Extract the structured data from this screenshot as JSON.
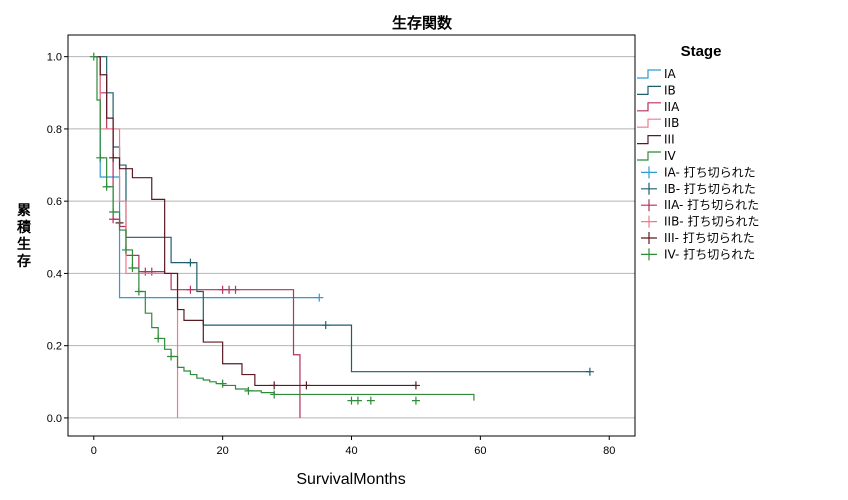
{
  "chart_data": {
    "type": "line",
    "title": "生存関数",
    "xlabel": "SurvivalMonths",
    "ylabel": "累積生存",
    "xlim": [
      -4,
      84
    ],
    "ylim": [
      -0.05,
      1.06
    ],
    "xticks": [
      "0",
      "20",
      "40",
      "60",
      "80"
    ],
    "yticks": [
      "0.0",
      "0.2",
      "0.4",
      "0.6",
      "0.8",
      "1.0"
    ],
    "grid": "horizontal",
    "legend_placement": "right",
    "legend_title": "Stage",
    "series": [
      {
        "name": "IA",
        "censor_name": "IA- 打ち切られた",
        "color": "#2E9BD6",
        "x": [
          0,
          1,
          4,
          35
        ],
        "y": [
          1.0,
          0.667,
          0.333,
          0.333
        ],
        "censored": [
          {
            "x": 35,
            "y": 0.333
          }
        ]
      },
      {
        "name": "IB",
        "censor_name": "IB- 打ち切られた",
        "color": "#1D5F6B",
        "x": [
          0,
          2,
          3,
          4,
          5,
          10,
          12,
          16,
          17,
          40,
          77
        ],
        "y": [
          1.0,
          0.9,
          0.75,
          0.7,
          0.5,
          0.5,
          0.43,
          0.35,
          0.257,
          0.128,
          0.128
        ],
        "censored": [
          {
            "x": 15,
            "y": 0.43
          },
          {
            "x": 36,
            "y": 0.257
          },
          {
            "x": 77,
            "y": 0.128
          }
        ]
      },
      {
        "name": "IIA",
        "censor_name": "IIA- 打ち切られた",
        "color": "#B5305F",
        "x": [
          0,
          1,
          2,
          3,
          4,
          5,
          7,
          11,
          12,
          31,
          32
        ],
        "y": [
          1.0,
          0.9,
          0.8,
          0.55,
          0.53,
          0.45,
          0.405,
          0.4,
          0.355,
          0.175,
          0.0
        ],
        "censored": [
          {
            "x": 3,
            "y": 0.55
          },
          {
            "x": 8,
            "y": 0.405
          },
          {
            "x": 9,
            "y": 0.405
          },
          {
            "x": 15,
            "y": 0.355
          },
          {
            "x": 20,
            "y": 0.355
          },
          {
            "x": 21,
            "y": 0.355
          },
          {
            "x": 22,
            "y": 0.355
          }
        ]
      },
      {
        "name": "IIB",
        "censor_name": "IIB- 打ち切られた",
        "color": "#F07A8A",
        "x": [
          0,
          1,
          3,
          4,
          5,
          7,
          13
        ],
        "y": [
          1.0,
          0.8,
          0.8,
          0.6,
          0.4,
          0.4,
          0.0
        ],
        "censored": []
      },
      {
        "name": "III",
        "censor_name": "III- 打ち切られた",
        "color": "#5A1A24",
        "x": [
          0,
          1,
          2,
          3,
          4,
          6,
          9,
          11,
          13,
          14,
          17,
          20,
          23,
          25,
          50
        ],
        "y": [
          1.0,
          0.95,
          0.83,
          0.72,
          0.69,
          0.665,
          0.605,
          0.4,
          0.3,
          0.27,
          0.21,
          0.15,
          0.12,
          0.09,
          0.09
        ],
        "censored": [
          {
            "x": 3,
            "y": 0.72
          },
          {
            "x": 4,
            "y": 0.54
          },
          {
            "x": 28,
            "y": 0.09
          },
          {
            "x": 33,
            "y": 0.09
          },
          {
            "x": 50,
            "y": 0.09
          }
        ]
      },
      {
        "name": "IV",
        "censor_name": "IV- 打ち切られた",
        "color": "#2E8B3A",
        "x": [
          0,
          0.5,
          1,
          2,
          3,
          4,
          5,
          6,
          7,
          8,
          9,
          10,
          11,
          12,
          13,
          14,
          15,
          16,
          17,
          18,
          19,
          20,
          22,
          24,
          26,
          28,
          59
        ],
        "y": [
          1.0,
          0.88,
          0.72,
          0.64,
          0.57,
          0.52,
          0.465,
          0.415,
          0.35,
          0.29,
          0.25,
          0.22,
          0.19,
          0.17,
          0.14,
          0.13,
          0.12,
          0.11,
          0.105,
          0.1,
          0.095,
          0.09,
          0.08,
          0.075,
          0.07,
          0.065,
          0.048
        ],
        "censored": [
          {
            "x": 0,
            "y": 1.0
          },
          {
            "x": 1,
            "y": 0.72
          },
          {
            "x": 2,
            "y": 0.64
          },
          {
            "x": 3,
            "y": 0.57
          },
          {
            "x": 5,
            "y": 0.465
          },
          {
            "x": 6,
            "y": 0.415
          },
          {
            "x": 7,
            "y": 0.35
          },
          {
            "x": 10,
            "y": 0.22
          },
          {
            "x": 12,
            "y": 0.17
          },
          {
            "x": 20,
            "y": 0.095
          },
          {
            "x": 24,
            "y": 0.075
          },
          {
            "x": 28,
            "y": 0.065
          },
          {
            "x": 40,
            "y": 0.048
          },
          {
            "x": 41,
            "y": 0.048
          },
          {
            "x": 43,
            "y": 0.048
          },
          {
            "x": 50,
            "y": 0.048
          }
        ]
      }
    ]
  }
}
